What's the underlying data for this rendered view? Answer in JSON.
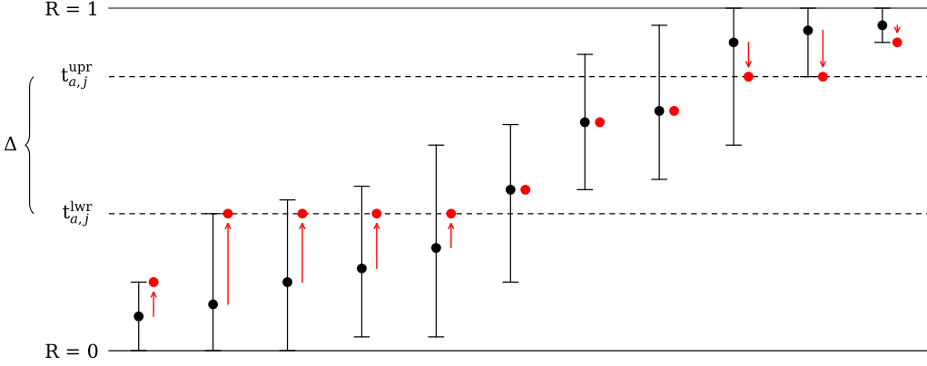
{
  "chart_data": {
    "type": "scatter",
    "categories": [
      null,
      null,
      null,
      null,
      null,
      null,
      null,
      null,
      null,
      null,
      null
    ],
    "ylim": [
      0,
      1
    ],
    "yticks": [
      {
        "value": 0,
        "label": "R = 0"
      },
      {
        "value": 1,
        "label": "R = 1"
      }
    ],
    "tick_labels": "y",
    "grid": "y",
    "marker": "circle",
    "series": [
      {
        "color": "#000000",
        "values": [
          0.1,
          0.135,
          0.2,
          0.24,
          0.3,
          0.47,
          0.667,
          0.7,
          0.9,
          0.935,
          0.95
        ],
        "errors": [
          [
            0,
            0.2
          ],
          [
            0,
            0.4
          ],
          [
            0,
            0.44
          ],
          [
            0.04,
            0.48
          ],
          [
            0.04,
            0.6
          ],
          [
            0.2,
            0.66
          ],
          [
            0.47,
            0.865
          ],
          [
            0.5,
            0.95
          ],
          [
            0.6,
            1.0
          ],
          [
            0.8,
            1.0
          ],
          [
            0.9,
            1.0
          ]
        ]
      },
      {
        "color": "#ff0000",
        "values": [
          0.2,
          0.4,
          0.4,
          0.4,
          0.4,
          0.47,
          0.667,
          0.7,
          0.8,
          0.8,
          0.9
        ]
      }
    ],
    "ref_lines": [
      {
        "axis": "y",
        "value": 0.8,
        "label": "t$^{upr}$$_{a,j}$",
        "line_style": "dashed",
        "color": "#000000"
      },
      {
        "axis": "y",
        "value": 0.4,
        "label": "t$^{lwr}$$_{a,j}$",
        "line_style": "dashed",
        "color": "#000000"
      }
    ],
    "annotations": [
      "Δ"
    ]
  }
}
